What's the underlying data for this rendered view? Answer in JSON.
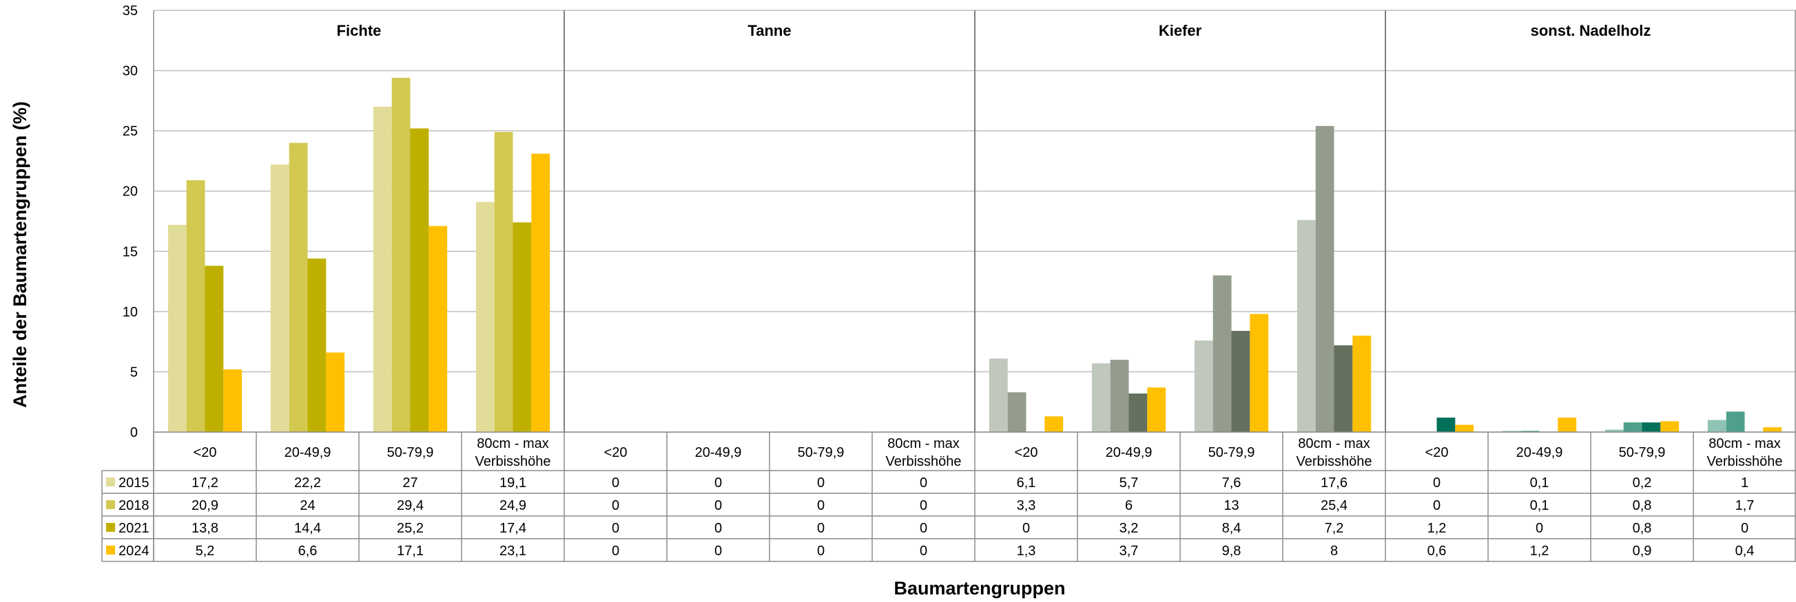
{
  "chart_data": {
    "type": "bar",
    "xlabel": "Baumartengruppen",
    "ylabel": "Anteile der Baumartengruppen (%)",
    "ylim": [
      0,
      35
    ],
    "yticks": [
      0,
      5,
      10,
      15,
      20,
      25,
      30,
      35
    ],
    "grid": true,
    "legend": "data-table-left",
    "groups": [
      {
        "name": "Fichte",
        "colors": {
          "2015": "#e2dc99",
          "2018": "#d3c850",
          "2021": "#bfb000",
          "2024": "#ffc000"
        }
      },
      {
        "name": "Tanne",
        "colors": {
          "2015": "#bfbfbf",
          "2018": "#a6a6a6",
          "2021": "#808080",
          "2024": "#ffc000"
        }
      },
      {
        "name": "Kiefer",
        "colors": {
          "2015": "#c0c7bc",
          "2018": "#939c8d",
          "2021": "#66705f",
          "2024": "#ffc000"
        }
      },
      {
        "name": "sonst. Nadelholz",
        "colors": {
          "2015": "#8fc3b6",
          "2018": "#4ea08c",
          "2021": "#00705a",
          "2024": "#ffc000"
        }
      }
    ],
    "categories": [
      "<20",
      "20-49,9",
      "50-79,9",
      "80cm - max Verbisshöhe",
      "<20",
      "20-49,9",
      "50-79,9",
      "80cm - max Verbisshöhe",
      "<20",
      "20-49,9",
      "50-79,9",
      "80cm - max Verbisshöhe",
      "<20",
      "20-49,9",
      "50-79,9",
      "80cm - max Verbisshöhe"
    ],
    "series": [
      {
        "name": "2015",
        "color": "#e2dc99",
        "values": [
          17.2,
          22.2,
          27,
          19.1,
          0,
          0,
          0,
          0,
          6.1,
          5.7,
          7.6,
          17.6,
          0,
          0.1,
          0.2,
          1
        ],
        "labels": [
          "17,2",
          "22,2",
          "27",
          "19,1",
          "0",
          "0",
          "0",
          "0",
          "6,1",
          "5,7",
          "7,6",
          "17,6",
          "0",
          "0,1",
          "0,2",
          "1"
        ]
      },
      {
        "name": "2018",
        "color": "#d3c850",
        "values": [
          20.9,
          24,
          29.4,
          24.9,
          0,
          0,
          0,
          0,
          3.3,
          6,
          13,
          25.4,
          0,
          0.1,
          0.8,
          1.7
        ],
        "labels": [
          "20,9",
          "24",
          "29,4",
          "24,9",
          "0",
          "0",
          "0",
          "0",
          "3,3",
          "6",
          "13",
          "25,4",
          "0",
          "0,1",
          "0,8",
          "1,7"
        ]
      },
      {
        "name": "2021",
        "color": "#bfb000",
        "values": [
          13.8,
          14.4,
          25.2,
          17.4,
          0,
          0,
          0,
          0,
          0,
          3.2,
          8.4,
          7.2,
          1.2,
          0,
          0.8,
          0
        ],
        "labels": [
          "13,8",
          "14,4",
          "25,2",
          "17,4",
          "0",
          "0",
          "0",
          "0",
          "0",
          "3,2",
          "8,4",
          "7,2",
          "1,2",
          "0",
          "0,8",
          "0"
        ]
      },
      {
        "name": "2024",
        "color": "#ffc000",
        "values": [
          5.2,
          6.6,
          17.1,
          23.1,
          0,
          0,
          0,
          0,
          1.3,
          3.7,
          9.8,
          8,
          0.6,
          1.2,
          0.9,
          0.4
        ],
        "labels": [
          "5,2",
          "6,6",
          "17,1",
          "23,1",
          "0",
          "0",
          "0",
          "0",
          "1,3",
          "3,7",
          "9,8",
          "8",
          "0,6",
          "1,2",
          "0,9",
          "0,4"
        ]
      }
    ]
  }
}
